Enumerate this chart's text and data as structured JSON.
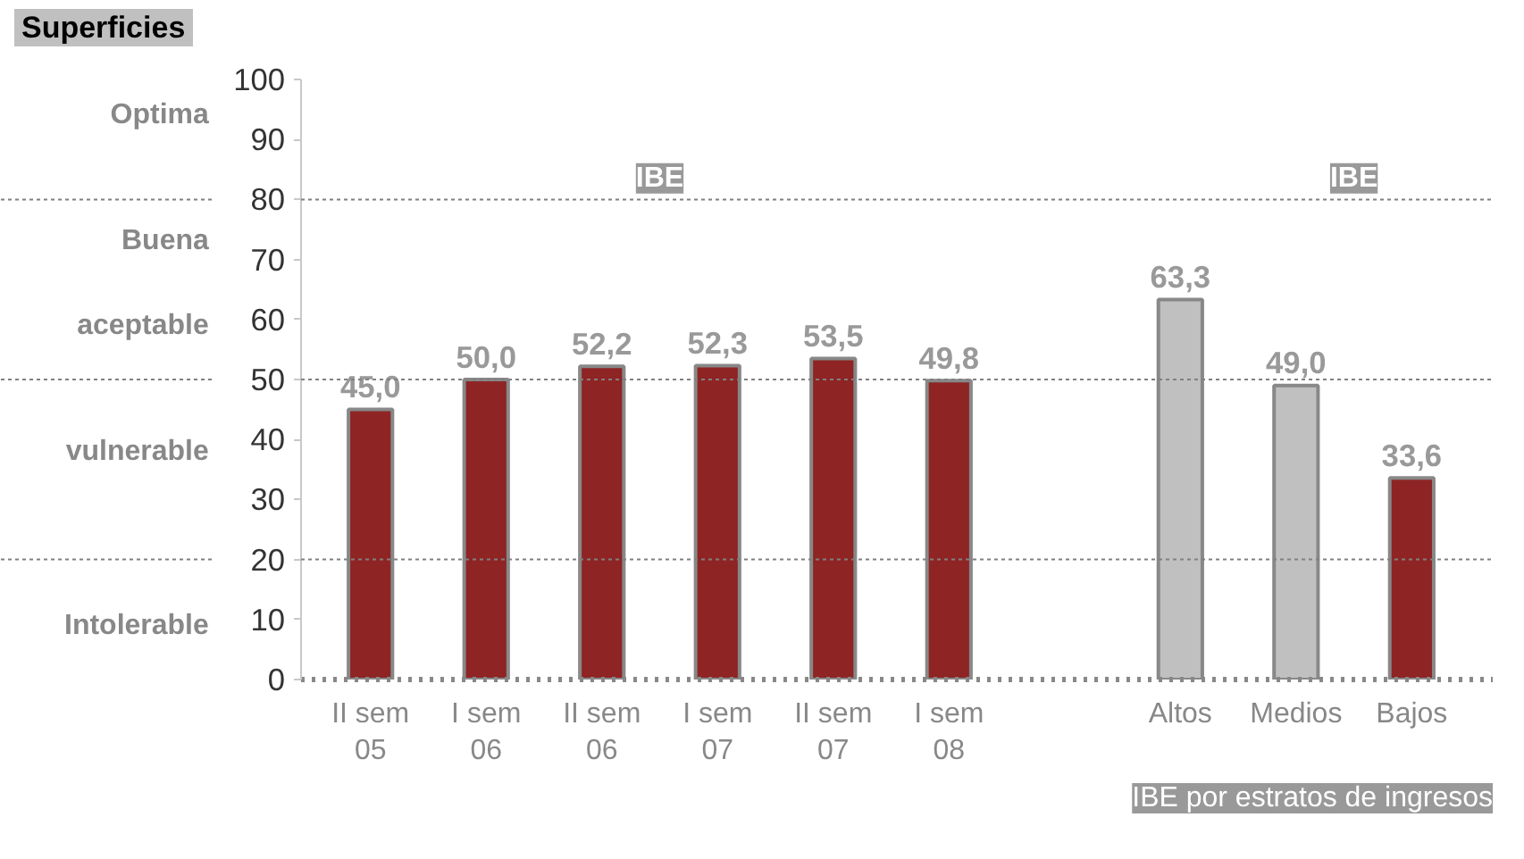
{
  "chart_data": {
    "type": "bar",
    "title": "Superficies",
    "categories": [
      "II sem\n05",
      "I sem\n06",
      "II sem\n06",
      "I sem\n07",
      "II sem\n07",
      "I sem\n08",
      null,
      "Altos",
      "Medios",
      "Bajos"
    ],
    "values": [
      45.0,
      50.0,
      52.2,
      52.3,
      53.5,
      49.8,
      null,
      63.3,
      49.0,
      33.6
    ],
    "value_labels": [
      "45,0",
      "50,0",
      "52,2",
      "52,3",
      "53,5",
      "49,8",
      null,
      "63,3",
      "49,0",
      "33,6"
    ],
    "colors": [
      "#8e2424",
      "#8e2424",
      "#8e2424",
      "#8e2424",
      "#8e2424",
      "#8e2424",
      "#8e2424",
      "#c0c0c0",
      "#c0c0c0",
      "#8e2424"
    ],
    "ylim": [
      0,
      100
    ],
    "yticks": [
      0,
      10,
      20,
      30,
      40,
      50,
      60,
      70,
      80,
      90,
      100
    ],
    "grid": false,
    "ref_lines": [
      {
        "axis": "y",
        "value": 20,
        "color": "#808080",
        "line_style": "dotted"
      },
      {
        "axis": "y",
        "value": 50,
        "color": "#808080",
        "line_style": "dotted"
      },
      {
        "axis": "y",
        "value": 80,
        "color": "#808080",
        "line_style": "dotted"
      }
    ],
    "annotations": [
      "Optima",
      "Buena",
      "aceptable",
      "vulnerable",
      "Intolerable",
      "IBE",
      "IBE",
      "IBE por estratos de ingresos"
    ]
  }
}
